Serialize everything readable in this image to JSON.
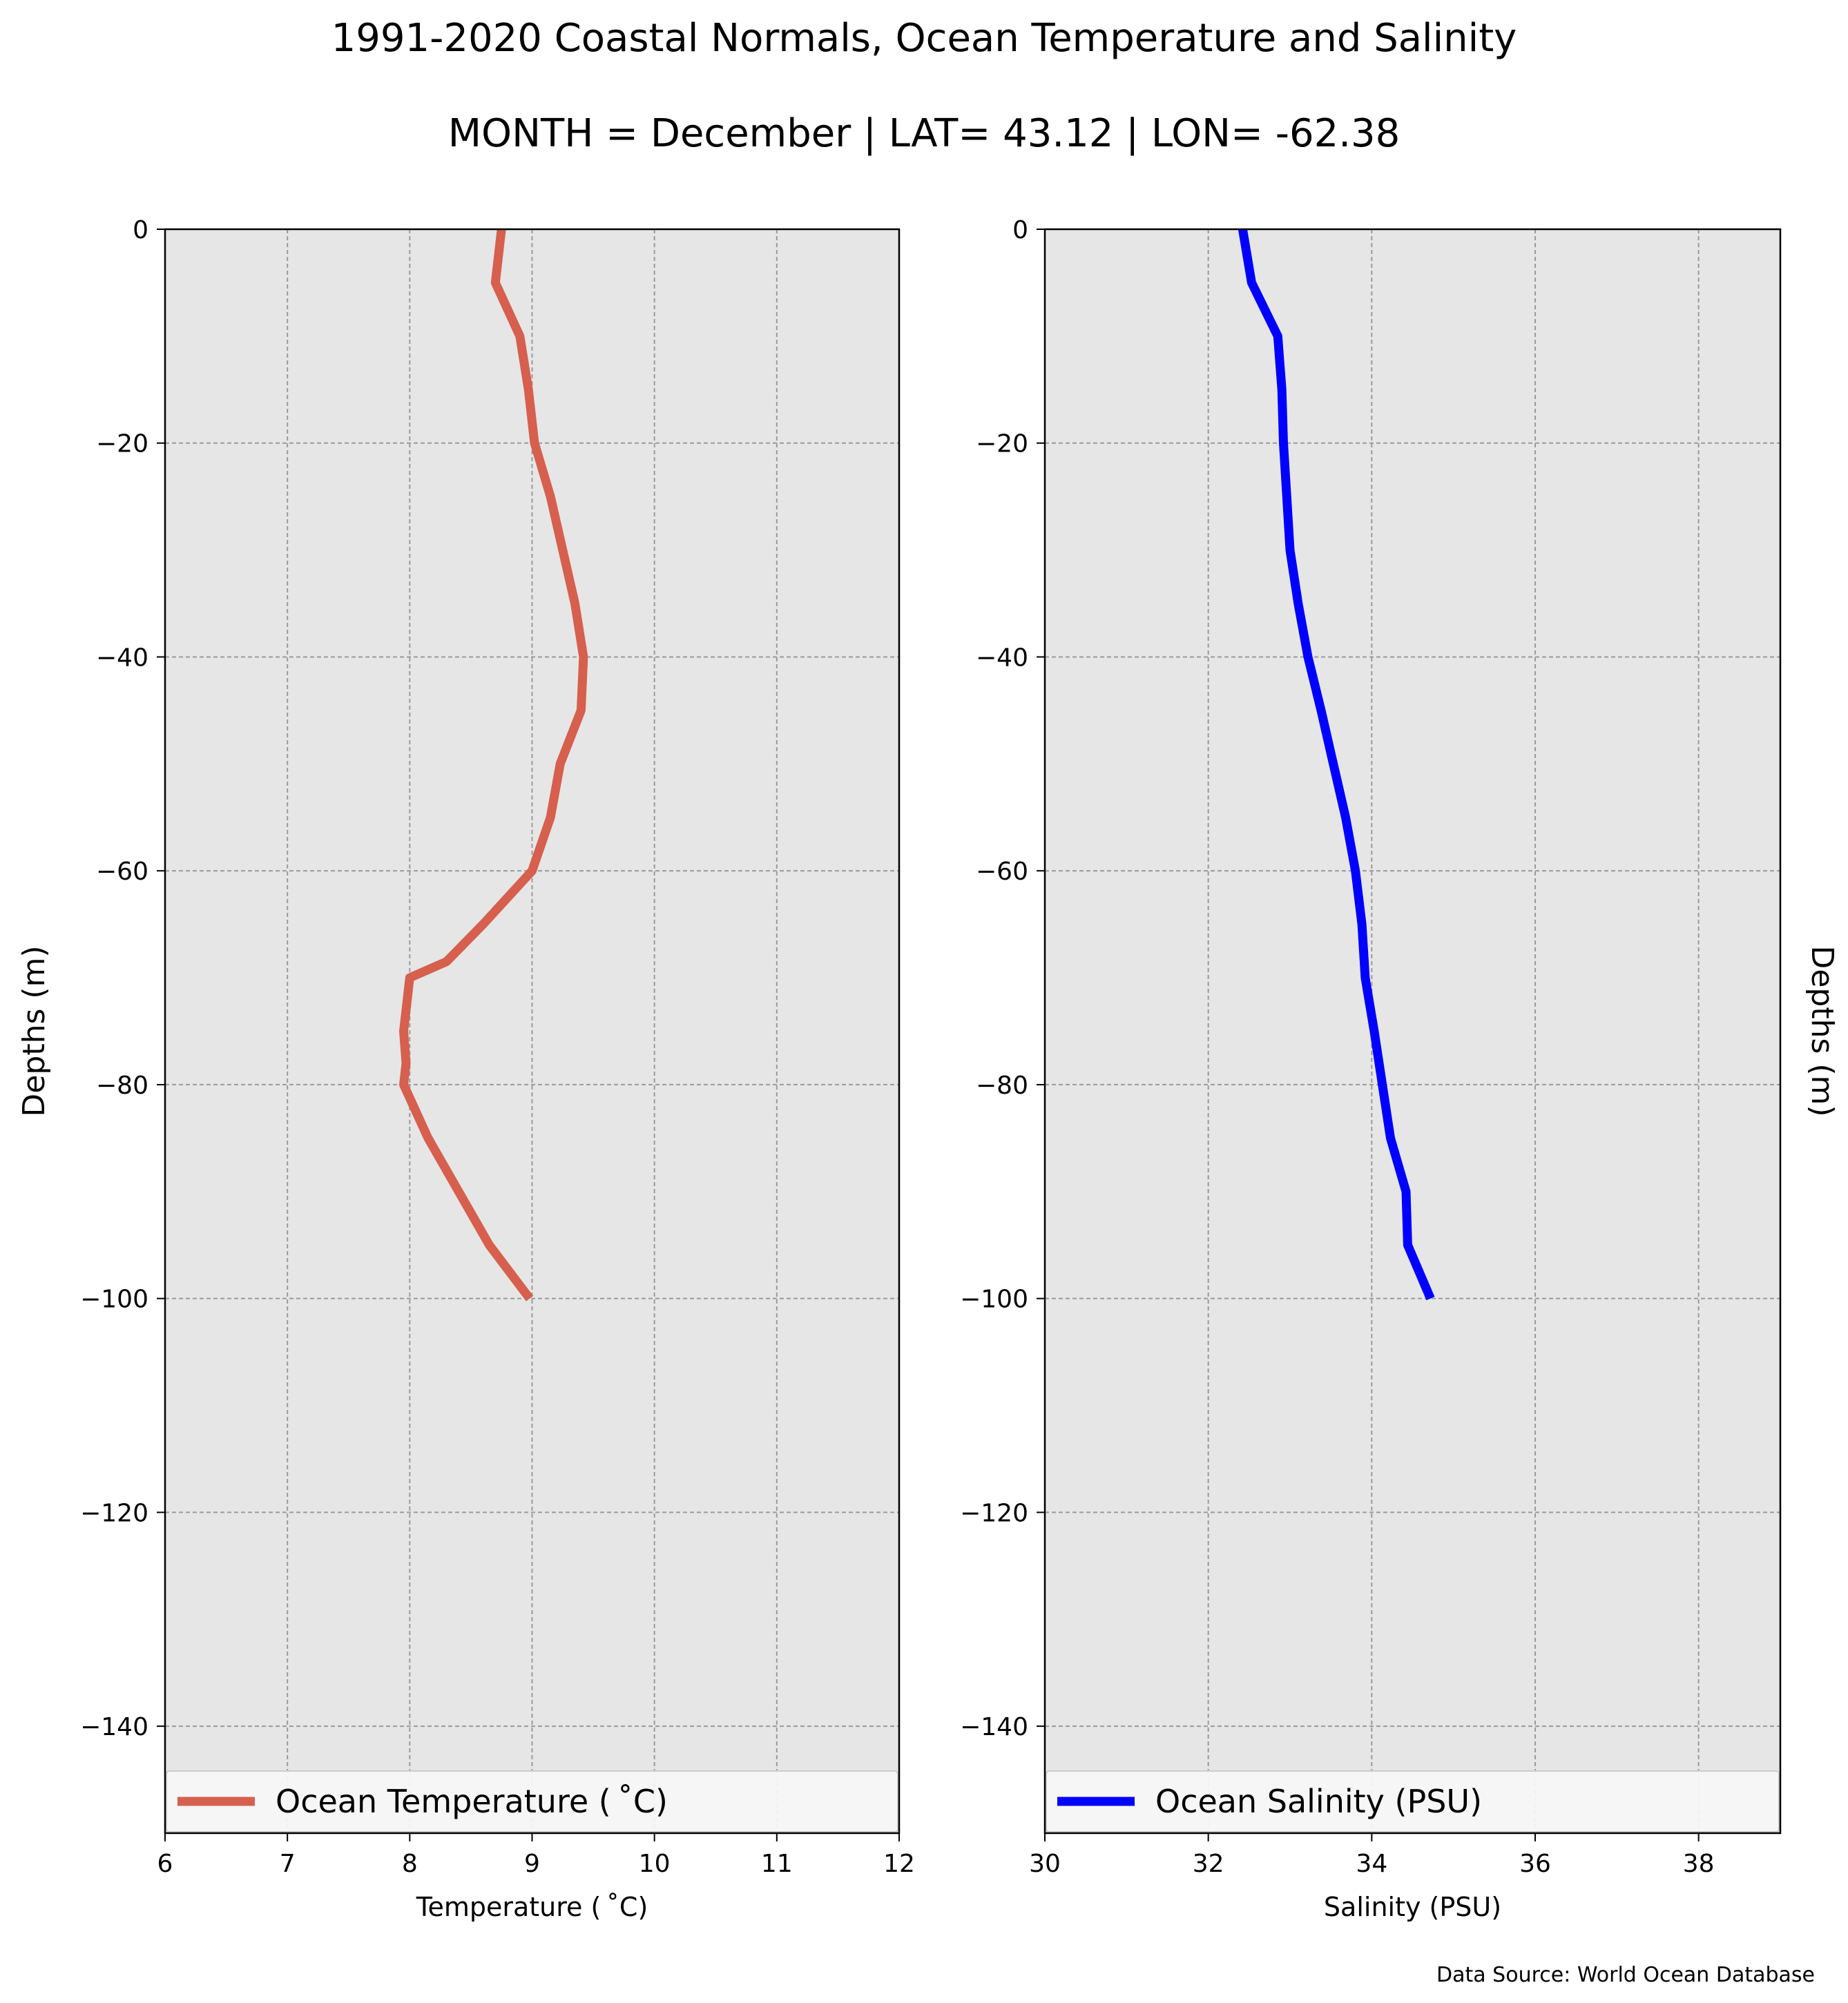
{
  "figure": {
    "title": "1991-2020 Coastal Normals, Ocean Temperature and Salinity",
    "subtitle": "MONTH = December | LAT= 43.12 | LON= -62.38",
    "source": "Data Source: World Ocean Database"
  },
  "chart_data": [
    {
      "type": "line",
      "orientation": "vertical-profile",
      "xlabel": "Temperature ($^\\circ$C)",
      "xlabel_display": "Temperature ( ˚C)",
      "ylabel": "Depths (m)",
      "xlim": [
        6,
        12
      ],
      "ylim": [
        -150,
        0
      ],
      "xticks": [
        6,
        7,
        8,
        9,
        10,
        11,
        12
      ],
      "yticks": [
        0,
        -20,
        -40,
        -60,
        -80,
        -100,
        -120,
        -140
      ],
      "ytick_labels": [
        "0",
        "−20",
        "−40",
        "−60",
        "−80",
        "−100",
        "−120",
        "−140"
      ],
      "grid": true,
      "legend_position": "bottom",
      "background": "#e6e6e6",
      "series": [
        {
          "name": "Ocean Temperature ($^\\circ$C)",
          "name_display": "Ocean Temperature ( ˚C)",
          "color": "#d65f4e",
          "x": [
            8.75,
            8.7,
            8.9,
            8.97,
            9.02,
            9.15,
            9.25,
            9.35,
            9.42,
            9.4,
            9.23,
            9.15,
            9.0,
            8.6,
            8.3,
            8.0,
            7.95,
            7.97,
            7.95,
            8.15,
            8.4,
            8.65,
            8.98
          ],
          "y": [
            0,
            -5,
            -10,
            -15,
            -20,
            -25,
            -30,
            -35,
            -40,
            -45,
            -50,
            -55,
            -60,
            -65,
            -68.5,
            -70,
            -75,
            -78,
            -80,
            -85,
            -90,
            -95,
            -100
          ]
        }
      ]
    },
    {
      "type": "line",
      "orientation": "vertical-profile",
      "xlabel": "Salinity (PSU)",
      "ylabel": "Depths (m)",
      "xlim": [
        30,
        39
      ],
      "ylim": [
        -150,
        0
      ],
      "xticks": [
        30,
        32,
        34,
        36,
        38
      ],
      "yticks": [
        0,
        -20,
        -40,
        -60,
        -80,
        -100,
        -120,
        -140
      ],
      "ytick_labels": [
        "0",
        "−20",
        "−40",
        "−60",
        "−80",
        "−100",
        "−120",
        "−140"
      ],
      "grid": true,
      "legend_position": "bottom",
      "background": "#e6e6e6",
      "series": [
        {
          "name": "Ocean Salinity (PSU)",
          "color": "#0000ff",
          "x": [
            32.42,
            32.53,
            32.85,
            32.9,
            32.92,
            32.96,
            33.0,
            33.1,
            33.22,
            33.38,
            33.53,
            33.68,
            33.8,
            33.88,
            33.92,
            34.03,
            34.13,
            34.23,
            34.42,
            34.44,
            34.72
          ],
          "y": [
            0,
            -5,
            -10,
            -15,
            -20,
            -25,
            -30,
            -35,
            -40,
            -45,
            -50,
            -55,
            -60,
            -65,
            -70,
            -75,
            -80,
            -85,
            -90,
            -95,
            -100
          ]
        }
      ]
    }
  ]
}
